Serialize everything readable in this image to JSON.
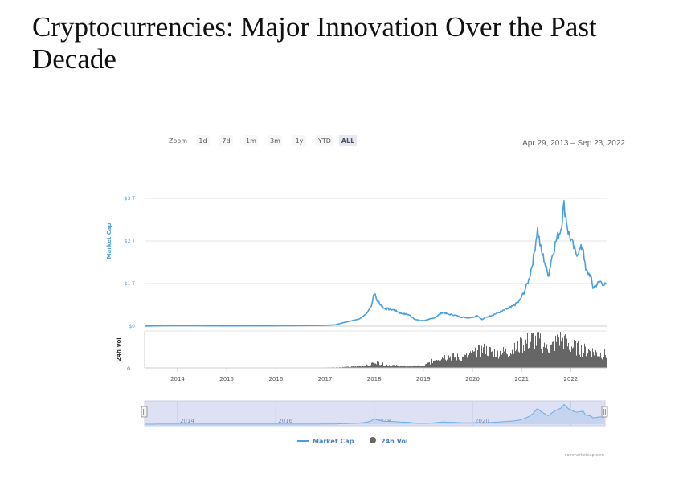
{
  "slide": {
    "title": "Cryptocurrencies: Major Innovation Over the Past Decade"
  },
  "toolbar": {
    "zoom_label": "Zoom",
    "buttons": [
      {
        "label": "1d",
        "active": false
      },
      {
        "label": "7d",
        "active": false
      },
      {
        "label": "1m",
        "active": false
      },
      {
        "label": "3m",
        "active": false
      },
      {
        "label": "1y",
        "active": false
      },
      {
        "label": "YTD",
        "active": false
      },
      {
        "label": "ALL",
        "active": true
      }
    ],
    "date_range": "Apr 29, 2013 – Sep 23, 2022"
  },
  "colors": {
    "market_cap": "#4a9fe0",
    "volume": "#666666",
    "navigator_bg": "#dde1f3",
    "grid": "#e6e6e6"
  },
  "legend": {
    "market_cap": "Market Cap",
    "volume": "24h Vol"
  },
  "credit": "coinmarketcap.com",
  "navigator": {
    "ticks": [
      "2014",
      "2016",
      "2018",
      "2020",
      "2022"
    ]
  },
  "chart_data": {
    "type": "line",
    "title": "",
    "xlabel": "",
    "ylabel": "Market Cap",
    "ylabel_secondary": "24h Vol",
    "x_ticks": [
      "2014",
      "2015",
      "2016",
      "2017",
      "2018",
      "2019",
      "2020",
      "2021",
      "2022"
    ],
    "y_ticks": [
      "$0",
      "$1 T",
      "$2 T",
      "$3 T"
    ],
    "y_ticks_secondary": [
      "0"
    ],
    "xlim": [
      2013.33,
      2022.73
    ],
    "ylim": [
      0,
      3
    ],
    "y_unit": "trillion USD",
    "grid": true,
    "legend_position": "bottom-center",
    "series": [
      {
        "name": "Market Cap",
        "type": "line",
        "x": [
          2013.33,
          2013.9,
          2014.2,
          2015.0,
          2016.0,
          2016.9,
          2017.2,
          2017.4,
          2017.55,
          2017.7,
          2017.85,
          2017.95,
          2018.0,
          2018.05,
          2018.1,
          2018.2,
          2018.3,
          2018.4,
          2018.55,
          2018.7,
          2018.85,
          2018.95,
          2019.0,
          2019.2,
          2019.4,
          2019.5,
          2019.6,
          2019.75,
          2019.9,
          2020.0,
          2020.1,
          2020.2,
          2020.25,
          2020.4,
          2020.6,
          2020.8,
          2020.95,
          2021.05,
          2021.15,
          2021.25,
          2021.32,
          2021.4,
          2021.45,
          2021.5,
          2021.55,
          2021.6,
          2021.7,
          2021.8,
          2021.86,
          2021.9,
          2021.95,
          2022.0,
          2022.1,
          2022.2,
          2022.25,
          2022.3,
          2022.4,
          2022.45,
          2022.5,
          2022.6,
          2022.65,
          2022.73
        ],
        "values": [
          0.002,
          0.012,
          0.01,
          0.006,
          0.008,
          0.017,
          0.03,
          0.09,
          0.13,
          0.17,
          0.3,
          0.5,
          0.8,
          0.62,
          0.55,
          0.42,
          0.4,
          0.38,
          0.3,
          0.27,
          0.15,
          0.13,
          0.13,
          0.18,
          0.33,
          0.28,
          0.27,
          0.22,
          0.2,
          0.21,
          0.25,
          0.15,
          0.2,
          0.26,
          0.35,
          0.45,
          0.58,
          0.8,
          1.1,
          1.65,
          2.3,
          1.75,
          1.6,
          1.35,
          1.2,
          1.55,
          2.0,
          2.3,
          2.85,
          2.6,
          2.2,
          2.05,
          1.7,
          1.8,
          1.9,
          1.3,
          1.2,
          0.9,
          0.95,
          1.05,
          1.0,
          0.95
        ]
      },
      {
        "name": "24h Vol",
        "type": "bar",
        "relative_scale": true,
        "x": [
          2013.33,
          2014.0,
          2015.0,
          2016.0,
          2017.0,
          2017.5,
          2017.9,
          2018.0,
          2018.2,
          2018.6,
          2019.0,
          2019.3,
          2019.5,
          2019.8,
          2020.0,
          2020.2,
          2020.5,
          2020.8,
          2021.0,
          2021.2,
          2021.4,
          2021.6,
          2021.8,
          2021.9,
          2022.0,
          2022.2,
          2022.4,
          2022.6,
          2022.73
        ],
        "values": [
          0.0,
          0.0,
          0.0,
          0.005,
          0.01,
          0.03,
          0.08,
          0.2,
          0.1,
          0.05,
          0.06,
          0.3,
          0.35,
          0.3,
          0.4,
          0.55,
          0.45,
          0.5,
          0.7,
          0.85,
          0.75,
          0.6,
          0.95,
          0.7,
          0.65,
          0.55,
          0.5,
          0.42,
          0.4
        ]
      }
    ]
  }
}
